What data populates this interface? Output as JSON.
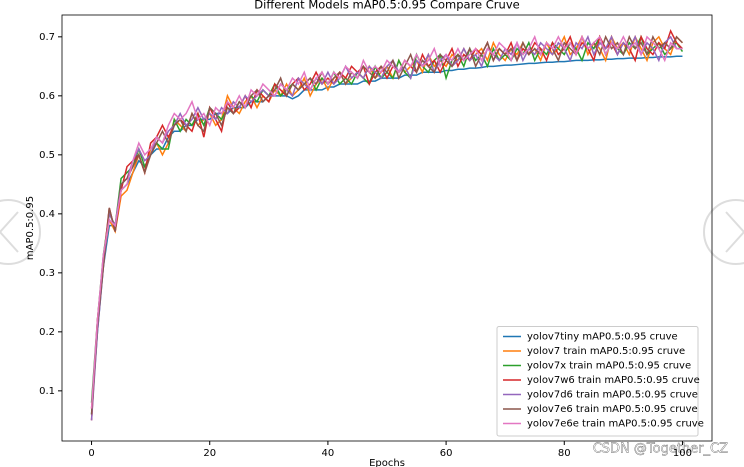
{
  "chart_data": {
    "type": "line",
    "title": "Different Models mAP0.5:0.95 Compare Cruve",
    "x_label": "Epochs",
    "y_label": "mAP0.5:0.95",
    "watermark": "CSDN @Together_CZ",
    "xlim": [
      -5,
      105
    ],
    "xticks": [
      0,
      20,
      40,
      60,
      80,
      100
    ],
    "ylim": [
      0.015,
      0.737
    ],
    "yticks": [
      0.1,
      0.2,
      0.3,
      0.4,
      0.5,
      0.6,
      0.7
    ],
    "legend": "lower right",
    "x": [
      0,
      1,
      2,
      3,
      4,
      5,
      6,
      7,
      8,
      9,
      10,
      11,
      12,
      13,
      14,
      15,
      16,
      17,
      18,
      19,
      20,
      21,
      22,
      23,
      24,
      25,
      26,
      27,
      28,
      29,
      30,
      31,
      32,
      33,
      34,
      35,
      36,
      37,
      38,
      39,
      40,
      41,
      42,
      43,
      44,
      45,
      46,
      47,
      48,
      49,
      50,
      51,
      52,
      53,
      54,
      55,
      56,
      57,
      58,
      59,
      60,
      61,
      62,
      63,
      64,
      65,
      66,
      67,
      68,
      69,
      70,
      71,
      72,
      73,
      74,
      75,
      76,
      77,
      78,
      79,
      80,
      81,
      82,
      83,
      84,
      85,
      86,
      87,
      88,
      89,
      90,
      91,
      92,
      93,
      94,
      95,
      96,
      97,
      98,
      99,
      100
    ],
    "series": [
      {
        "name": "yolov7tiny mAP0.5:0.95 cruve",
        "color": "#1f77b4",
        "values": [
          0.06,
          0.2,
          0.31,
          0.38,
          0.38,
          0.44,
          0.45,
          0.47,
          0.49,
          0.48,
          0.5,
          0.51,
          0.51,
          0.53,
          0.54,
          0.54,
          0.55,
          0.55,
          0.56,
          0.56,
          0.56,
          0.57,
          0.57,
          0.57,
          0.58,
          0.58,
          0.58,
          0.59,
          0.59,
          0.59,
          0.6,
          0.6,
          0.6,
          0.6,
          0.595,
          0.6,
          0.61,
          0.61,
          0.61,
          0.61,
          0.615,
          0.615,
          0.62,
          0.62,
          0.62,
          0.62,
          0.625,
          0.625,
          0.625,
          0.63,
          0.63,
          0.63,
          0.63,
          0.635,
          0.635,
          0.635,
          0.64,
          0.64,
          0.64,
          0.64,
          0.643,
          0.643,
          0.645,
          0.645,
          0.647,
          0.647,
          0.648,
          0.65,
          0.65,
          0.651,
          0.652,
          0.652,
          0.653,
          0.654,
          0.655,
          0.655,
          0.656,
          0.657,
          0.657,
          0.658,
          0.658,
          0.659,
          0.66,
          0.66,
          0.66,
          0.661,
          0.661,
          0.662,
          0.662,
          0.663,
          0.663,
          0.664,
          0.664,
          0.664,
          0.665,
          0.665,
          0.666,
          0.666,
          0.666,
          0.667,
          0.667
        ]
      },
      {
        "name": "yolov7 train mAP0.5:0.95 cruve",
        "color": "#ff7f0e",
        "values": [
          0.07,
          0.21,
          0.32,
          0.39,
          0.37,
          0.43,
          0.44,
          0.47,
          0.5,
          0.47,
          0.51,
          0.52,
          0.5,
          0.52,
          0.56,
          0.55,
          0.54,
          0.57,
          0.55,
          0.56,
          0.57,
          0.55,
          0.56,
          0.6,
          0.58,
          0.57,
          0.59,
          0.6,
          0.58,
          0.6,
          0.59,
          0.61,
          0.6,
          0.62,
          0.6,
          0.61,
          0.63,
          0.6,
          0.62,
          0.63,
          0.61,
          0.63,
          0.64,
          0.62,
          0.63,
          0.64,
          0.63,
          0.65,
          0.63,
          0.64,
          0.65,
          0.63,
          0.66,
          0.64,
          0.65,
          0.66,
          0.64,
          0.67,
          0.65,
          0.66,
          0.65,
          0.67,
          0.66,
          0.68,
          0.66,
          0.67,
          0.68,
          0.66,
          0.69,
          0.67,
          0.66,
          0.68,
          0.67,
          0.69,
          0.67,
          0.68,
          0.66,
          0.69,
          0.67,
          0.68,
          0.7,
          0.67,
          0.68,
          0.7,
          0.67,
          0.69,
          0.68,
          0.66,
          0.7,
          0.68,
          0.69,
          0.67,
          0.7,
          0.68,
          0.66,
          0.69,
          0.7,
          0.68,
          0.67,
          0.7,
          0.69
        ]
      },
      {
        "name": "yolov7x train mAP0.5:0.95 cruve",
        "color": "#2ca02c",
        "values": [
          0.08,
          0.22,
          0.33,
          0.4,
          0.38,
          0.46,
          0.47,
          0.48,
          0.51,
          0.48,
          0.5,
          0.52,
          0.51,
          0.51,
          0.56,
          0.54,
          0.56,
          0.55,
          0.57,
          0.55,
          0.58,
          0.57,
          0.56,
          0.58,
          0.57,
          0.59,
          0.58,
          0.6,
          0.59,
          0.61,
          0.6,
          0.62,
          0.6,
          0.61,
          0.62,
          0.61,
          0.62,
          0.63,
          0.61,
          0.63,
          0.62,
          0.64,
          0.62,
          0.63,
          0.62,
          0.64,
          0.63,
          0.62,
          0.65,
          0.63,
          0.64,
          0.63,
          0.66,
          0.64,
          0.63,
          0.67,
          0.65,
          0.64,
          0.66,
          0.67,
          0.63,
          0.66,
          0.67,
          0.65,
          0.68,
          0.66,
          0.67,
          0.65,
          0.68,
          0.66,
          0.67,
          0.66,
          0.68,
          0.67,
          0.69,
          0.66,
          0.68,
          0.67,
          0.69,
          0.68,
          0.67,
          0.69,
          0.68,
          0.66,
          0.69,
          0.68,
          0.7,
          0.67,
          0.69,
          0.68,
          0.67,
          0.69,
          0.68,
          0.7,
          0.67,
          0.68,
          0.69,
          0.67,
          0.68,
          0.69,
          0.675
        ]
      },
      {
        "name": "yolov7w6 train mAP0.5:0.95 cruve",
        "color": "#d62728",
        "values": [
          0.05,
          0.22,
          0.32,
          0.41,
          0.37,
          0.44,
          0.48,
          0.49,
          0.5,
          0.47,
          0.52,
          0.53,
          0.55,
          0.53,
          0.55,
          0.56,
          0.55,
          0.54,
          0.57,
          0.53,
          0.58,
          0.56,
          0.54,
          0.59,
          0.57,
          0.58,
          0.6,
          0.58,
          0.61,
          0.6,
          0.59,
          0.62,
          0.61,
          0.6,
          0.62,
          0.63,
          0.61,
          0.62,
          0.64,
          0.62,
          0.63,
          0.62,
          0.64,
          0.63,
          0.65,
          0.64,
          0.65,
          0.62,
          0.64,
          0.65,
          0.63,
          0.65,
          0.64,
          0.66,
          0.65,
          0.64,
          0.67,
          0.65,
          0.66,
          0.64,
          0.66,
          0.68,
          0.65,
          0.67,
          0.66,
          0.68,
          0.67,
          0.69,
          0.66,
          0.68,
          0.67,
          0.69,
          0.66,
          0.68,
          0.67,
          0.69,
          0.68,
          0.66,
          0.69,
          0.67,
          0.68,
          0.7,
          0.67,
          0.69,
          0.68,
          0.66,
          0.7,
          0.68,
          0.69,
          0.67,
          0.69,
          0.68,
          0.66,
          0.7,
          0.68,
          0.67,
          0.69,
          0.68,
          0.71,
          0.69,
          0.68
        ]
      },
      {
        "name": "yolov7d6 train mAP0.5:0.95 cruve",
        "color": "#9467bd",
        "values": [
          0.05,
          0.2,
          0.31,
          0.4,
          0.38,
          0.45,
          0.46,
          0.49,
          0.51,
          0.49,
          0.5,
          0.53,
          0.52,
          0.54,
          0.55,
          0.57,
          0.55,
          0.56,
          0.58,
          0.56,
          0.57,
          0.56,
          0.58,
          0.57,
          0.59,
          0.58,
          0.6,
          0.59,
          0.6,
          0.61,
          0.6,
          0.6,
          0.62,
          0.61,
          0.6,
          0.63,
          0.62,
          0.61,
          0.63,
          0.62,
          0.64,
          0.62,
          0.63,
          0.65,
          0.63,
          0.64,
          0.63,
          0.65,
          0.64,
          0.63,
          0.65,
          0.66,
          0.64,
          0.65,
          0.63,
          0.66,
          0.65,
          0.67,
          0.64,
          0.66,
          0.67,
          0.65,
          0.66,
          0.68,
          0.66,
          0.67,
          0.65,
          0.68,
          0.67,
          0.66,
          0.68,
          0.67,
          0.69,
          0.66,
          0.68,
          0.67,
          0.69,
          0.68,
          0.67,
          0.69,
          0.68,
          0.66,
          0.69,
          0.68,
          0.7,
          0.67,
          0.69,
          0.68,
          0.7,
          0.67,
          0.69,
          0.68,
          0.7,
          0.67,
          0.69,
          0.68,
          0.66,
          0.69,
          0.7,
          0.68,
          0.68
        ]
      },
      {
        "name": "yolov7e6 train mAP0.5:0.95 cruve",
        "color": "#8c564b",
        "values": [
          0.06,
          0.21,
          0.31,
          0.41,
          0.37,
          0.45,
          0.46,
          0.48,
          0.5,
          0.47,
          0.5,
          0.52,
          0.54,
          0.52,
          0.55,
          0.56,
          0.54,
          0.57,
          0.55,
          0.54,
          0.58,
          0.57,
          0.55,
          0.58,
          0.57,
          0.59,
          0.58,
          0.6,
          0.61,
          0.59,
          0.6,
          0.61,
          0.63,
          0.6,
          0.62,
          0.61,
          0.62,
          0.63,
          0.62,
          0.64,
          0.62,
          0.63,
          0.64,
          0.62,
          0.64,
          0.63,
          0.65,
          0.64,
          0.63,
          0.65,
          0.64,
          0.66,
          0.63,
          0.65,
          0.67,
          0.64,
          0.66,
          0.65,
          0.64,
          0.67,
          0.66,
          0.65,
          0.67,
          0.66,
          0.68,
          0.65,
          0.67,
          0.69,
          0.66,
          0.68,
          0.67,
          0.68,
          0.66,
          0.69,
          0.67,
          0.68,
          0.67,
          0.69,
          0.68,
          0.66,
          0.69,
          0.68,
          0.67,
          0.7,
          0.68,
          0.69,
          0.67,
          0.7,
          0.68,
          0.69,
          0.67,
          0.7,
          0.68,
          0.69,
          0.67,
          0.7,
          0.68,
          0.69,
          0.68,
          0.7,
          0.69
        ]
      },
      {
        "name": "yolov7e6e train mAP0.5:0.95 cruve",
        "color": "#e377c2",
        "values": [
          0.07,
          0.22,
          0.33,
          0.39,
          0.38,
          0.44,
          0.45,
          0.49,
          0.52,
          0.5,
          0.51,
          0.53,
          0.52,
          0.55,
          0.57,
          0.56,
          0.57,
          0.59,
          0.56,
          0.57,
          0.55,
          0.58,
          0.57,
          0.59,
          0.58,
          0.6,
          0.58,
          0.61,
          0.6,
          0.62,
          0.61,
          0.6,
          0.62,
          0.61,
          0.63,
          0.62,
          0.64,
          0.61,
          0.63,
          0.64,
          0.62,
          0.64,
          0.63,
          0.65,
          0.64,
          0.63,
          0.66,
          0.64,
          0.65,
          0.64,
          0.66,
          0.65,
          0.64,
          0.66,
          0.65,
          0.67,
          0.65,
          0.66,
          0.68,
          0.65,
          0.67,
          0.66,
          0.68,
          0.66,
          0.67,
          0.68,
          0.66,
          0.68,
          0.67,
          0.69,
          0.68,
          0.66,
          0.69,
          0.67,
          0.68,
          0.7,
          0.67,
          0.69,
          0.68,
          0.7,
          0.68,
          0.69,
          0.67,
          0.7,
          0.68,
          0.69,
          0.7,
          0.67,
          0.69,
          0.68,
          0.7,
          0.68,
          0.69,
          0.67,
          0.7,
          0.69,
          0.68,
          0.66,
          0.69,
          0.68,
          0.68
        ]
      }
    ]
  }
}
